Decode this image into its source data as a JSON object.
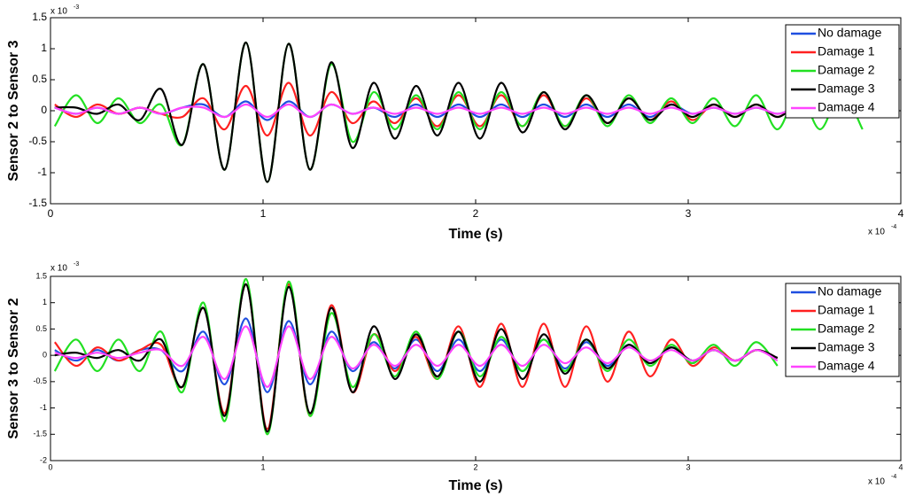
{
  "chart_data": [
    {
      "type": "line",
      "ylabel": "Sensor 2 to Sensor 3",
      "xlabel": "Time (s)",
      "x_multiplier": {
        "base": "x 10",
        "exponent": "-4"
      },
      "y_multiplier": {
        "base": "x 10",
        "exponent": "-3"
      },
      "xlim": [
        0,
        4
      ],
      "xticks": [
        0,
        1,
        2,
        3,
        4
      ],
      "ylim": [
        -1.5,
        1.5
      ],
      "yticks": [
        -1.5,
        -1,
        -0.5,
        0,
        0.5,
        1,
        1.5
      ],
      "grid": false,
      "legend": "upper right",
      "x": [
        0.02,
        0.12,
        0.22,
        0.32,
        0.42,
        0.52,
        0.62,
        0.72,
        0.82,
        0.92,
        1.02,
        1.12,
        1.22,
        1.32,
        1.42,
        1.52,
        1.62,
        1.72,
        1.82,
        1.92,
        2.02,
        2.12,
        2.22,
        2.32,
        2.42,
        2.52,
        2.62,
        2.72,
        2.82,
        2.92,
        3.02,
        3.12,
        3.22,
        3.32,
        3.42,
        3.52,
        3.62,
        3.72,
        3.82
      ],
      "series": [
        {
          "name": "No damage",
          "color": "#1f4fe0",
          "values": [
            0.05,
            -0.05,
            0.05,
            -0.05,
            0.05,
            -0.05,
            0.05,
            0.1,
            -0.1,
            0.15,
            -0.15,
            0.15,
            -0.1,
            0.1,
            -0.05,
            0.05,
            -0.1,
            0.1,
            -0.1,
            0.1,
            -0.1,
            0.1,
            -0.1,
            0.1,
            -0.1,
            0.1,
            -0.1,
            0.1,
            -0.1,
            0.1,
            -0.05,
            0.05,
            -0.05,
            0.05,
            -0.05,
            0.05,
            -0.05,
            0.05,
            -0.05
          ]
        },
        {
          "name": "Damage 1",
          "color": "#ff2020",
          "values": [
            0.1,
            -0.1,
            0.1,
            -0.05,
            0.05,
            -0.05,
            -0.1,
            0.2,
            -0.3,
            0.4,
            -0.4,
            0.45,
            -0.4,
            0.3,
            -0.2,
            0.15,
            -0.2,
            0.2,
            -0.25,
            0.25,
            -0.25,
            0.25,
            -0.25,
            0.25,
            -0.25,
            0.2,
            -0.2,
            0.2,
            -0.15,
            0.15,
            -0.15,
            0.1,
            -0.1,
            0.1,
            -0.1,
            0.1,
            -0.1,
            0.1,
            -0.1
          ]
        },
        {
          "name": "Damage 2",
          "color": "#22e022",
          "values": [
            -0.25,
            0.25,
            -0.2,
            0.2,
            -0.2,
            0.1,
            -0.55,
            0.75,
            -0.95,
            1.1,
            -1.15,
            1.08,
            -0.95,
            0.75,
            -0.5,
            0.3,
            -0.3,
            0.25,
            -0.3,
            0.3,
            -0.3,
            0.3,
            -0.25,
            0.3,
            -0.25,
            0.25,
            -0.25,
            0.25,
            -0.2,
            0.2,
            -0.2,
            0.2,
            -0.25,
            0.25,
            -0.3,
            0.3,
            -0.3,
            0.3,
            -0.3
          ]
        },
        {
          "name": "Damage 3",
          "color": "#000000",
          "values": [
            0.05,
            0.05,
            -0.05,
            0.1,
            -0.15,
            0.35,
            -0.55,
            0.75,
            -0.95,
            1.1,
            -1.15,
            1.08,
            -0.95,
            0.78,
            -0.6,
            0.45,
            -0.45,
            0.4,
            -0.4,
            0.45,
            -0.45,
            0.45,
            -0.35,
            0.3,
            -0.3,
            0.25,
            -0.2,
            0.2,
            -0.15,
            0.1,
            -0.1,
            0.1,
            -0.1,
            0.1,
            -0.1,
            0.1,
            -0.05,
            0.05,
            -0.05
          ]
        },
        {
          "name": "Damage 4",
          "color": "#ff44ff",
          "values": [
            0.05,
            -0.05,
            0.05,
            -0.05,
            0.05,
            -0.05,
            0.05,
            0.05,
            -0.1,
            0.1,
            -0.1,
            0.1,
            -0.1,
            0.1,
            -0.05,
            0.05,
            -0.05,
            0.05,
            -0.05,
            0.05,
            -0.05,
            0.05,
            -0.05,
            0.05,
            -0.05,
            0.05,
            -0.05,
            0.05,
            -0.05,
            0.05,
            -0.05,
            0.05,
            -0.05,
            0.05,
            -0.05,
            0.05,
            -0.05,
            0.05,
            -0.05
          ]
        }
      ]
    },
    {
      "type": "line",
      "ylabel": "Sensor 3 to Sensor 2",
      "xlabel": "Time (s)",
      "x_multiplier": {
        "base": "x 10",
        "exponent": "-4"
      },
      "y_multiplier": {
        "base": "x 10",
        "exponent": "-3"
      },
      "xlim": [
        0,
        4
      ],
      "xticks": [
        0,
        1,
        2,
        3,
        4
      ],
      "ylim": [
        -2,
        1.5
      ],
      "yticks": [
        -2,
        -1.5,
        -1,
        -0.5,
        0,
        0.5,
        1,
        1.5
      ],
      "grid": false,
      "legend": "upper right",
      "x": [
        0.02,
        0.12,
        0.22,
        0.32,
        0.42,
        0.52,
        0.62,
        0.72,
        0.82,
        0.92,
        1.02,
        1.12,
        1.22,
        1.32,
        1.42,
        1.52,
        1.62,
        1.72,
        1.82,
        1.92,
        2.02,
        2.12,
        2.22,
        2.32,
        2.42,
        2.52,
        2.62,
        2.72,
        2.82,
        2.92,
        3.02,
        3.12,
        3.22,
        3.32,
        3.42
      ],
      "series": [
        {
          "name": "No damage",
          "color": "#1f4fe0",
          "values": [
            0.1,
            -0.1,
            0.1,
            -0.1,
            0.1,
            0.1,
            -0.3,
            0.45,
            -0.55,
            0.7,
            -0.7,
            0.65,
            -0.55,
            0.45,
            -0.3,
            0.25,
            -0.25,
            0.3,
            -0.3,
            0.3,
            -0.3,
            0.3,
            -0.3,
            0.3,
            -0.25,
            0.25,
            -0.2,
            0.2,
            -0.15,
            0.15,
            -0.1,
            0.1,
            -0.1,
            0.1,
            -0.05
          ]
        },
        {
          "name": "Damage 1",
          "color": "#ff2020",
          "values": [
            0.25,
            -0.2,
            0.15,
            -0.1,
            0.1,
            0.2,
            -0.6,
            0.9,
            -1.1,
            1.35,
            -1.4,
            1.35,
            -1.15,
            0.95,
            -0.7,
            0.4,
            -0.3,
            0.35,
            -0.45,
            0.55,
            -0.6,
            0.6,
            -0.6,
            0.6,
            -0.6,
            0.55,
            -0.5,
            0.45,
            -0.4,
            0.3,
            -0.2,
            0.15,
            -0.1,
            0.1,
            -0.05
          ]
        },
        {
          "name": "Damage 2",
          "color": "#22e022",
          "values": [
            -0.3,
            0.3,
            -0.3,
            0.3,
            -0.3,
            0.45,
            -0.7,
            1.0,
            -1.25,
            1.45,
            -1.5,
            1.4,
            -1.15,
            0.8,
            -0.6,
            0.4,
            -0.4,
            0.45,
            -0.45,
            0.45,
            -0.4,
            0.35,
            -0.3,
            0.3,
            -0.3,
            0.3,
            -0.3,
            0.3,
            -0.2,
            0.2,
            -0.15,
            0.2,
            -0.2,
            0.25,
            -0.2
          ]
        },
        {
          "name": "Damage 3",
          "color": "#000000",
          "values": [
            0,
            0.05,
            -0.05,
            0.1,
            -0.1,
            0.3,
            -0.6,
            0.9,
            -1.15,
            1.35,
            -1.45,
            1.3,
            -1.1,
            0.9,
            -0.7,
            0.55,
            -0.45,
            0.4,
            -0.4,
            0.45,
            -0.5,
            0.5,
            -0.45,
            0.4,
            -0.35,
            0.3,
            -0.25,
            0.2,
            -0.15,
            0.15,
            -0.1,
            0.1,
            -0.1,
            0.1,
            -0.05
          ]
        },
        {
          "name": "Damage 4",
          "color": "#ff44ff",
          "values": [
            0.05,
            -0.05,
            0.05,
            -0.05,
            0.05,
            0.1,
            -0.2,
            0.35,
            -0.45,
            0.55,
            -0.6,
            0.55,
            -0.45,
            0.35,
            -0.25,
            0.2,
            -0.2,
            0.2,
            -0.2,
            0.2,
            -0.2,
            0.2,
            -0.2,
            0.2,
            -0.15,
            0.15,
            -0.15,
            0.15,
            -0.1,
            0.1,
            -0.1,
            0.1,
            -0.1,
            0.1,
            -0.1
          ]
        }
      ]
    }
  ]
}
